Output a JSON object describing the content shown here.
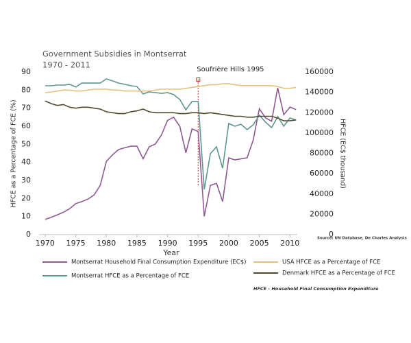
{
  "chart_data": {
    "type": "line",
    "title": "Government Subsidies in Montserrat",
    "subtitle": "1970 - 2011",
    "xlabel": "Year",
    "ylabel": "HFCE as a Percentage of FCE (%)",
    "y2label": "HFCE (EC$ thousand)",
    "source": "Source: UN Database, De Charles Analysis",
    "footnote": "HFCE - Household Final Consumption Expenditure",
    "annotation": {
      "text": "Soufrière Hills 1995",
      "x": 1995,
      "color": "#e03030"
    },
    "x": [
      1970,
      1971,
      1972,
      1973,
      1974,
      1975,
      1976,
      1977,
      1978,
      1979,
      1980,
      1981,
      1982,
      1983,
      1984,
      1985,
      1986,
      1987,
      1988,
      1989,
      1990,
      1991,
      1992,
      1993,
      1994,
      1995,
      1996,
      1997,
      1998,
      1999,
      2000,
      2001,
      2002,
      2003,
      2004,
      2005,
      2006,
      2007,
      2008,
      2009,
      2010,
      2011
    ],
    "xlim": [
      1969,
      2011.2
    ],
    "xticks": [
      1970,
      1975,
      1980,
      1985,
      1990,
      1995,
      2000,
      2005,
      2010
    ],
    "ylim": [
      0,
      90
    ],
    "yticks": [
      0,
      10,
      20,
      30,
      40,
      50,
      60,
      70,
      80,
      90
    ],
    "y2lim": [
      0,
      160000
    ],
    "y2ticks": [
      0,
      20000,
      40000,
      60000,
      80000,
      100000,
      120000,
      140000,
      160000
    ],
    "grid": false,
    "series": [
      {
        "name": "Montserrat Household Final Consumption Expenditure (EC$)",
        "color": "#8e5a92",
        "axis": "y2",
        "values": [
          15000,
          17000,
          19500,
          22000,
          25500,
          30500,
          32500,
          35000,
          39000,
          48500,
          72000,
          78500,
          83700,
          85500,
          87000,
          87000,
          74500,
          86400,
          89100,
          98000,
          112500,
          115500,
          106500,
          80500,
          104000,
          101500,
          18000,
          48500,
          50500,
          32500,
          75500,
          73500,
          74500,
          75600,
          93000,
          124000,
          115000,
          111500,
          144500,
          118000,
          125500,
          123000
        ]
      },
      {
        "name": "Montserrat HFCE as a Percentage of FCE",
        "color": "#5e9690",
        "values": [
          82.4,
          82.4,
          82.8,
          82.8,
          83.2,
          81.7,
          83.9,
          83.9,
          83.9,
          83.9,
          86.2,
          85.1,
          83.9,
          83.2,
          82.4,
          82,
          77.9,
          79,
          78.6,
          78.2,
          78.6,
          77.5,
          74.8,
          69.1,
          73.7,
          73.7,
          25,
          44.8,
          48.6,
          36.8,
          61.5,
          60,
          61.1,
          58.1,
          60.8,
          66.1,
          62.3,
          59.2,
          65.3,
          60,
          64.6,
          63.4
        ]
      },
      {
        "name": "USA HFCE as a Percentage of FCE",
        "color": "#e3c27f",
        "values": [
          78.5,
          79,
          79.5,
          80,
          80,
          79.5,
          79.5,
          80,
          80.5,
          80.5,
          80.5,
          80,
          80,
          79.5,
          79.5,
          79.5,
          79.5,
          79.5,
          80,
          80.5,
          80.5,
          80.5,
          80.5,
          81,
          81.5,
          82,
          82.5,
          83,
          83,
          83.5,
          83.5,
          83,
          82.5,
          82.5,
          82.5,
          82.5,
          82.5,
          82.5,
          82,
          81,
          81,
          81.5
        ]
      },
      {
        "name": "Denmark HFCE as a Percentage of FCE",
        "color": "#4f4a2e",
        "values": [
          74,
          72.5,
          71.5,
          72,
          70.5,
          70,
          70.5,
          70.5,
          70,
          69.5,
          68,
          67.5,
          67,
          67,
          68,
          68.5,
          69.5,
          68,
          67.5,
          67.5,
          67.5,
          67.5,
          67,
          67,
          67.5,
          67.5,
          67,
          67.5,
          67,
          66.5,
          66,
          65.5,
          65.5,
          65,
          65,
          65.5,
          65.5,
          65.5,
          64.5,
          63,
          63,
          63.5
        ]
      }
    ]
  }
}
